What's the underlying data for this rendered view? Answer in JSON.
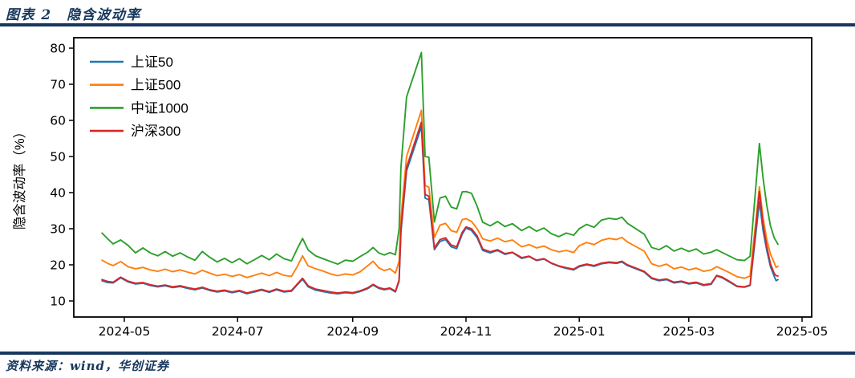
{
  "header": {
    "title": "图表 2　隐含波动率"
  },
  "footer": {
    "source": "资料来源：wind，华创证券"
  },
  "colors": {
    "accent": "#17375e",
    "axis": "#000000",
    "background": "#ffffff"
  },
  "chart_data": {
    "type": "line",
    "title": "隐含波动率",
    "xlabel": "",
    "ylabel": "隐含波动率（%）",
    "ylim": [
      5.5,
      83
    ],
    "yticks": [
      10,
      20,
      30,
      40,
      50,
      60,
      70,
      80
    ],
    "grid": false,
    "legend_position": "upper left",
    "x_ticks": [
      {
        "label": "2024-05",
        "day": 12
      },
      {
        "label": "2024-07",
        "day": 73
      },
      {
        "label": "2024-09",
        "day": 135
      },
      {
        "label": "2024-11",
        "day": 196
      },
      {
        "label": "2025-01",
        "day": 257
      },
      {
        "label": "2025-03",
        "day": 316
      },
      {
        "label": "2025-05",
        "day": 377
      }
    ],
    "start_date": "2024-04-19",
    "end_date": "2025-04-18",
    "day_offsets": [
      0,
      3,
      6,
      10,
      14,
      18,
      22,
      26,
      30,
      34,
      38,
      42,
      46,
      50,
      54,
      58,
      62,
      66,
      70,
      74,
      78,
      82,
      86,
      90,
      94,
      98,
      102,
      105,
      108,
      111,
      115,
      119,
      123,
      127,
      131,
      135,
      139,
      143,
      146,
      149,
      152,
      155,
      158,
      160,
      161,
      164,
      172,
      174,
      176,
      179,
      182,
      185,
      188,
      191,
      194,
      196,
      199,
      202,
      205,
      209,
      213,
      217,
      221,
      226,
      230,
      234,
      238,
      242,
      246,
      250,
      254,
      257,
      261,
      265,
      269,
      273,
      277,
      280,
      283,
      292,
      296,
      300,
      304,
      308,
      312,
      316,
      320,
      324,
      328,
      331,
      334,
      338,
      342,
      346,
      349,
      354,
      356,
      358,
      360,
      362,
      363,
      364
    ],
    "series": [
      {
        "name": "上证50",
        "color": "#1f77b4",
        "values": [
          15.6,
          15.1,
          15.0,
          16.4,
          15.3,
          14.7,
          14.9,
          14.3,
          13.9,
          14.2,
          13.7,
          14.0,
          13.5,
          13.1,
          13.6,
          12.9,
          12.5,
          12.8,
          12.3,
          12.7,
          12.0,
          12.5,
          13.0,
          12.4,
          13.1,
          12.5,
          12.7,
          14.4,
          16.0,
          13.9,
          13.0,
          12.6,
          12.2,
          12.0,
          12.3,
          12.1,
          12.6,
          13.4,
          14.4,
          13.5,
          13.1,
          13.4,
          12.5,
          15.5,
          29.0,
          46.0,
          58.3,
          38.5,
          38.0,
          24.2,
          26.5,
          27.0,
          25.0,
          24.5,
          28.5,
          30.2,
          29.5,
          27.5,
          24.0,
          23.3,
          24.0,
          22.9,
          23.4,
          21.8,
          22.3,
          21.2,
          21.6,
          20.4,
          19.6,
          19.0,
          18.6,
          19.5,
          20.0,
          19.6,
          20.3,
          20.6,
          20.4,
          20.8,
          19.8,
          18.0,
          16.2,
          15.6,
          15.9,
          15.0,
          15.3,
          14.7,
          15.0,
          14.3,
          14.6,
          16.9,
          16.4,
          15.2,
          14.0,
          13.8,
          14.3,
          37.5,
          29.5,
          24.0,
          19.5,
          16.8,
          15.6,
          15.9
        ]
      },
      {
        "name": "上证500",
        "color": "#ff7f0e",
        "values": [
          21.3,
          20.4,
          19.8,
          20.9,
          19.5,
          18.9,
          19.3,
          18.6,
          18.2,
          18.8,
          18.1,
          18.6,
          18.0,
          17.5,
          18.5,
          17.7,
          17.0,
          17.4,
          16.8,
          17.3,
          16.5,
          17.1,
          17.7,
          17.0,
          17.9,
          17.1,
          16.8,
          19.4,
          22.5,
          19.7,
          18.9,
          18.3,
          17.5,
          17.0,
          17.5,
          17.2,
          18.1,
          19.7,
          21.0,
          19.2,
          18.4,
          18.9,
          17.7,
          21.0,
          33.0,
          50.0,
          62.8,
          42.0,
          41.5,
          27.6,
          31.0,
          31.5,
          29.5,
          29.0,
          32.5,
          32.8,
          32.0,
          30.0,
          27.2,
          26.6,
          27.4,
          26.4,
          26.9,
          25.0,
          25.6,
          24.7,
          25.2,
          24.2,
          23.6,
          24.0,
          23.4,
          25.3,
          26.2,
          25.6,
          26.8,
          27.3,
          27.0,
          27.6,
          26.3,
          23.8,
          20.3,
          19.6,
          20.2,
          18.9,
          19.4,
          18.6,
          19.1,
          18.2,
          18.6,
          19.5,
          18.8,
          17.8,
          16.7,
          16.3,
          16.9,
          41.6,
          33.0,
          27.0,
          23.0,
          20.6,
          19.3,
          19.6
        ]
      },
      {
        "name": "中证1000",
        "color": "#2ca02c",
        "values": [
          28.8,
          27.2,
          25.8,
          26.9,
          25.4,
          23.3,
          24.7,
          23.3,
          22.5,
          23.7,
          22.4,
          23.3,
          22.2,
          21.3,
          23.7,
          22.1,
          20.8,
          21.8,
          20.6,
          21.7,
          20.3,
          21.4,
          22.6,
          21.4,
          23.0,
          21.7,
          21.1,
          24.3,
          27.3,
          24.1,
          22.5,
          21.7,
          20.9,
          20.2,
          21.3,
          21.0,
          22.3,
          23.5,
          24.8,
          23.3,
          22.7,
          23.4,
          22.8,
          30.0,
          47.0,
          66.5,
          78.8,
          50.0,
          49.8,
          31.9,
          38.5,
          39.0,
          36.0,
          35.5,
          40.2,
          40.3,
          39.8,
          36.2,
          31.8,
          30.8,
          32.0,
          30.6,
          31.4,
          29.5,
          30.6,
          29.3,
          30.2,
          28.6,
          27.8,
          28.8,
          28.2,
          30.0,
          31.2,
          30.4,
          32.4,
          32.9,
          32.6,
          33.2,
          31.5,
          28.5,
          24.8,
          24.2,
          25.3,
          23.8,
          24.6,
          23.7,
          24.4,
          23.0,
          23.5,
          24.2,
          23.4,
          22.4,
          21.4,
          21.2,
          22.4,
          53.6,
          44.0,
          36.5,
          30.8,
          27.5,
          26.6,
          25.7
        ]
      },
      {
        "name": "沪深300",
        "color": "#d62728",
        "values": [
          15.9,
          15.4,
          15.2,
          16.6,
          15.5,
          14.9,
          15.1,
          14.5,
          14.1,
          14.4,
          13.9,
          14.2,
          13.7,
          13.3,
          13.8,
          13.1,
          12.7,
          13.0,
          12.5,
          12.9,
          12.2,
          12.7,
          13.2,
          12.6,
          13.3,
          12.7,
          12.9,
          14.6,
          16.3,
          14.2,
          13.3,
          12.9,
          12.5,
          12.2,
          12.5,
          12.3,
          12.8,
          13.6,
          14.6,
          13.7,
          13.3,
          13.6,
          12.7,
          15.8,
          30.0,
          47.0,
          59.5,
          39.5,
          39.0,
          24.7,
          27.0,
          27.5,
          25.5,
          25.0,
          29.0,
          30.5,
          30.0,
          28.0,
          24.4,
          23.6,
          24.2,
          23.1,
          23.5,
          22.0,
          22.4,
          21.3,
          21.7,
          20.5,
          19.7,
          19.2,
          18.8,
          19.7,
          20.2,
          19.8,
          20.5,
          20.8,
          20.6,
          21.0,
          20.0,
          18.2,
          16.4,
          15.8,
          16.1,
          15.2,
          15.5,
          14.9,
          15.2,
          14.5,
          14.8,
          17.1,
          16.6,
          15.4,
          14.1,
          13.9,
          14.4,
          40.3,
          31.0,
          25.0,
          20.3,
          17.6,
          17.0,
          16.9
        ]
      }
    ]
  }
}
